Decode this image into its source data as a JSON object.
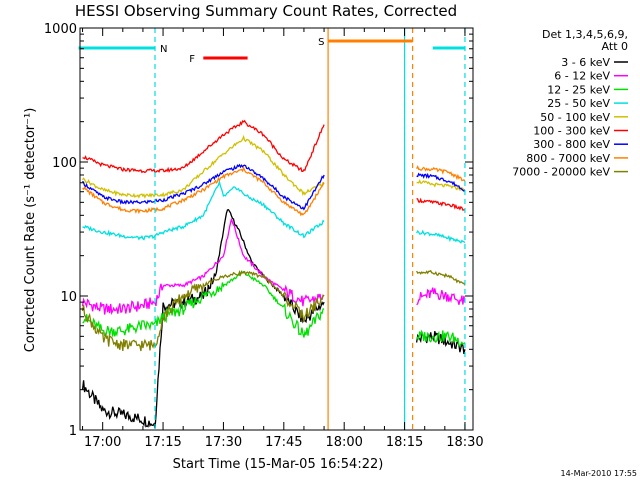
{
  "chart_data": {
    "type": "line",
    "title": "HESSI Observing Summary Count Rates, Corrected",
    "xlabel": "Start Time (15-Mar-05 16:54:22)",
    "ylabel": "Corrected Count Rate (s⁻¹ detector⁻¹)",
    "yscale": "log",
    "ylim": [
      1,
      1000
    ],
    "xlim": [
      "16:54:22",
      "18:32:00"
    ],
    "x_tick_labels": [
      "17:00",
      "17:15",
      "17:30",
      "17:45",
      "18:00",
      "18:15",
      "18:30"
    ],
    "y_tick_labels": [
      "1",
      "10",
      "100",
      "1000"
    ],
    "grid": false,
    "legend_position": "right",
    "legend_header": [
      "Det 1,3,4,5,6,9,",
      "Att 0"
    ],
    "footer_date": "14-Mar-2010 17:55",
    "flags": [
      {
        "label": "N",
        "color": "#00e0e0",
        "segments": [
          [
            "16:54",
            "17:13"
          ],
          [
            "18:22",
            "18:30"
          ]
        ]
      },
      {
        "label": "F",
        "color": "#ff0000",
        "segments": [
          [
            "17:25",
            "17:36"
          ]
        ]
      },
      {
        "label": "S",
        "color": "#ff8000",
        "segments": [
          [
            "17:56",
            "18:17"
          ]
        ]
      }
    ],
    "markers": [
      {
        "time": "17:13",
        "color": "#00e0e0",
        "style": "dashed"
      },
      {
        "time": "17:56",
        "color": "#ff8000",
        "style": "solid"
      },
      {
        "time": "18:15",
        "color": "#00e0e0",
        "style": "solid"
      },
      {
        "time": "18:17",
        "color": "#ff8000",
        "style": "dashed"
      },
      {
        "time": "18:30",
        "color": "#00e0e0",
        "style": "dashed"
      }
    ],
    "series": [
      {
        "name": "3 - 6 keV",
        "color": "#000000",
        "points": [
          [
            "16:55",
            2.2
          ],
          [
            "17:00",
            1.4
          ],
          [
            "17:05",
            1.3
          ],
          [
            "17:10",
            1.2
          ],
          [
            "17:13",
            1.1
          ],
          [
            "17:15",
            8.5
          ],
          [
            "17:20",
            9
          ],
          [
            "17:25",
            10
          ],
          [
            "17:28",
            14
          ],
          [
            "17:31",
            45
          ],
          [
            "17:34",
            30
          ],
          [
            "17:37",
            18
          ],
          [
            "17:40",
            14
          ],
          [
            "17:45",
            10
          ],
          [
            "17:50",
            6.5
          ],
          [
            "17:55",
            9
          ],
          [
            "18:18",
            4.8
          ],
          [
            "18:22",
            5
          ],
          [
            "18:26",
            4.5
          ],
          [
            "18:30",
            4
          ]
        ]
      },
      {
        "name": "6 - 12 keV",
        "color": "#ff00ff",
        "points": [
          [
            "16:55",
            9
          ],
          [
            "17:00",
            8
          ],
          [
            "17:05",
            8
          ],
          [
            "17:10",
            8.5
          ],
          [
            "17:13",
            9
          ],
          [
            "17:15",
            12
          ],
          [
            "17:20",
            12
          ],
          [
            "17:25",
            14
          ],
          [
            "17:30",
            20
          ],
          [
            "17:32",
            38
          ],
          [
            "17:35",
            20
          ],
          [
            "17:40",
            14
          ],
          [
            "17:45",
            11
          ],
          [
            "17:50",
            9
          ],
          [
            "17:55",
            10
          ],
          [
            "18:18",
            9.5
          ],
          [
            "18:22",
            10.5
          ],
          [
            "18:26",
            10
          ],
          [
            "18:30",
            9
          ]
        ]
      },
      {
        "name": "12 - 25 keV",
        "color": "#00e000",
        "points": [
          [
            "16:55",
            7
          ],
          [
            "17:00",
            5.5
          ],
          [
            "17:05",
            5.5
          ],
          [
            "17:10",
            6
          ],
          [
            "17:13",
            6
          ],
          [
            "17:15",
            7
          ],
          [
            "17:20",
            8
          ],
          [
            "17:25",
            10
          ],
          [
            "17:30",
            12
          ],
          [
            "17:35",
            15
          ],
          [
            "17:40",
            12
          ],
          [
            "17:45",
            8
          ],
          [
            "17:50",
            5
          ],
          [
            "17:55",
            8
          ],
          [
            "18:18",
            5
          ],
          [
            "18:22",
            5
          ],
          [
            "18:26",
            5
          ],
          [
            "18:30",
            4.5
          ]
        ]
      },
      {
        "name": "25 - 50 keV",
        "color": "#00e0e0",
        "points": [
          [
            "16:55",
            33
          ],
          [
            "17:00",
            30
          ],
          [
            "17:05",
            28
          ],
          [
            "17:10",
            27
          ],
          [
            "17:13",
            28
          ],
          [
            "17:15",
            30
          ],
          [
            "17:20",
            33
          ],
          [
            "17:25",
            40
          ],
          [
            "17:29",
            70
          ],
          [
            "17:30",
            55
          ],
          [
            "17:33",
            65
          ],
          [
            "17:36",
            55
          ],
          [
            "17:40",
            48
          ],
          [
            "17:45",
            35
          ],
          [
            "17:50",
            28
          ],
          [
            "17:55",
            36
          ],
          [
            "18:18",
            30
          ],
          [
            "18:22",
            29
          ],
          [
            "18:26",
            27
          ],
          [
            "18:30",
            25
          ]
        ]
      },
      {
        "name": "50 - 100 keV",
        "color": "#d0c000",
        "points": [
          [
            "16:55",
            75
          ],
          [
            "17:00",
            62
          ],
          [
            "17:05",
            57
          ],
          [
            "17:10",
            56
          ],
          [
            "17:15",
            57
          ],
          [
            "17:20",
            62
          ],
          [
            "17:25",
            85
          ],
          [
            "17:30",
            115
          ],
          [
            "17:35",
            150
          ],
          [
            "17:40",
            120
          ],
          [
            "17:45",
            80
          ],
          [
            "17:50",
            58
          ],
          [
            "17:55",
            70
          ],
          [
            "18:18",
            72
          ],
          [
            "18:22",
            68
          ],
          [
            "18:26",
            66
          ],
          [
            "18:30",
            62
          ]
        ]
      },
      {
        "name": "100 - 300 keV",
        "color": "#ff0000",
        "points": [
          [
            "16:55",
            110
          ],
          [
            "17:00",
            95
          ],
          [
            "17:05",
            88
          ],
          [
            "17:10",
            86
          ],
          [
            "17:15",
            86
          ],
          [
            "17:20",
            90
          ],
          [
            "17:25",
            120
          ],
          [
            "17:30",
            160
          ],
          [
            "17:35",
            200
          ],
          [
            "17:40",
            160
          ],
          [
            "17:45",
            105
          ],
          [
            "17:50",
            85
          ],
          [
            "17:55",
            190
          ],
          [
            "18:18",
            52
          ],
          [
            "18:22",
            50
          ],
          [
            "18:26",
            48
          ],
          [
            "18:30",
            44
          ]
        ]
      },
      {
        "name": "300 - 800 keV",
        "color": "#0000ff",
        "points": [
          [
            "16:55",
            70
          ],
          [
            "17:00",
            55
          ],
          [
            "17:05",
            50
          ],
          [
            "17:10",
            50
          ],
          [
            "17:15",
            52
          ],
          [
            "17:20",
            58
          ],
          [
            "17:25",
            68
          ],
          [
            "17:30",
            85
          ],
          [
            "17:35",
            95
          ],
          [
            "17:40",
            75
          ],
          [
            "17:45",
            55
          ],
          [
            "17:50",
            45
          ],
          [
            "17:55",
            80
          ],
          [
            "18:18",
            80
          ],
          [
            "18:22",
            78
          ],
          [
            "18:26",
            72
          ],
          [
            "18:30",
            62
          ]
        ]
      },
      {
        "name": "800 - 7000 keV",
        "color": "#ff8000",
        "points": [
          [
            "16:55",
            65
          ],
          [
            "17:00",
            50
          ],
          [
            "17:05",
            44
          ],
          [
            "17:10",
            43
          ],
          [
            "17:15",
            45
          ],
          [
            "17:20",
            52
          ],
          [
            "17:25",
            62
          ],
          [
            "17:30",
            78
          ],
          [
            "17:35",
            88
          ],
          [
            "17:40",
            70
          ],
          [
            "17:45",
            50
          ],
          [
            "17:50",
            40
          ],
          [
            "17:55",
            70
          ],
          [
            "18:18",
            90
          ],
          [
            "18:22",
            88
          ],
          [
            "18:26",
            84
          ],
          [
            "18:30",
            72
          ]
        ]
      },
      {
        "name": "7000 - 20000 keV",
        "color": "#808000",
        "points": [
          [
            "16:55",
            8
          ],
          [
            "17:00",
            4.8
          ],
          [
            "17:05",
            4.3
          ],
          [
            "17:10",
            4.3
          ],
          [
            "17:13",
            4.3
          ],
          [
            "17:15",
            7
          ],
          [
            "17:20",
            10
          ],
          [
            "17:25",
            12
          ],
          [
            "17:30",
            14
          ],
          [
            "17:35",
            15
          ],
          [
            "17:40",
            14
          ],
          [
            "17:45",
            10
          ],
          [
            "17:50",
            7
          ],
          [
            "17:55",
            10
          ],
          [
            "18:18",
            15
          ],
          [
            "18:22",
            15
          ],
          [
            "18:26",
            14
          ],
          [
            "18:30",
            12
          ]
        ]
      }
    ]
  }
}
